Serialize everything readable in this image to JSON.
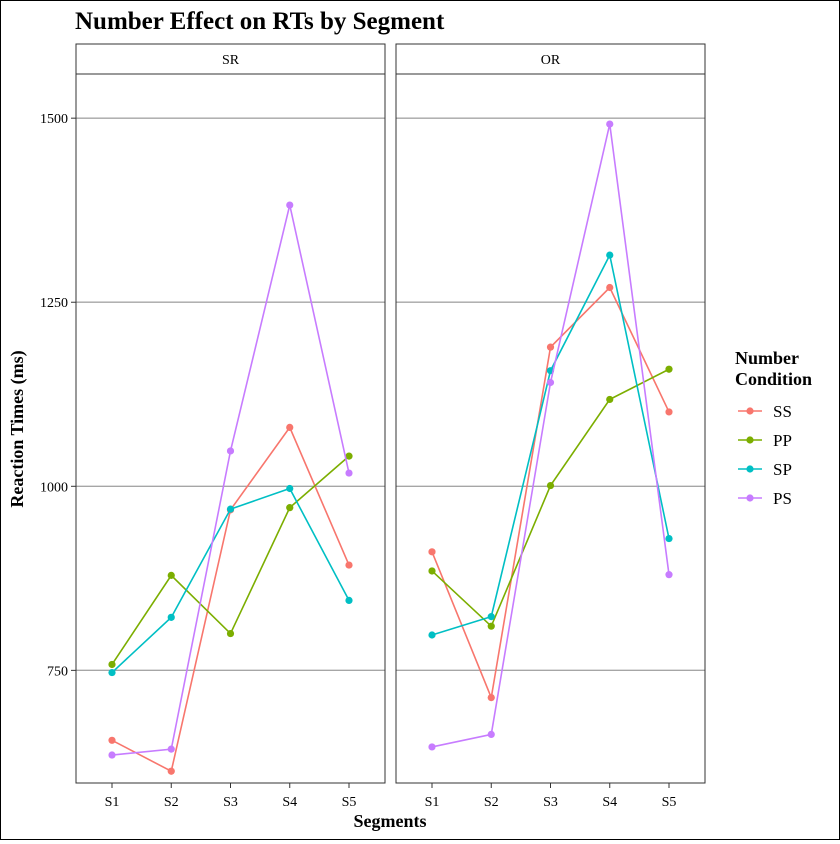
{
  "chart_data": {
    "type": "line",
    "title": "Number Effect on RTs by Segment",
    "xlabel": "Segments",
    "ylabel": "Reaction Times (ms)",
    "categories": [
      "S1",
      "S2",
      "S3",
      "S4",
      "S5"
    ],
    "ylim": [
      597,
      1560
    ],
    "yticks": [
      750,
      1000,
      1250,
      1500
    ],
    "grid": "horizontal-major",
    "legend": {
      "title_line1": "Number",
      "title_line2": "Condition",
      "position": "right"
    },
    "colors": {
      "SS": "#F8766D",
      "PP": "#7CAE00",
      "SP": "#00BFC4",
      "PS": "#C77CFF"
    },
    "panels": [
      {
        "label": "SR",
        "series": [
          {
            "name": "SS",
            "values": [
              655,
              613,
              968,
              1080,
              893
            ]
          },
          {
            "name": "PP",
            "values": [
              758,
              879,
              800,
              971,
              1041
            ]
          },
          {
            "name": "SP",
            "values": [
              747,
              822,
              969,
              997,
              845
            ]
          },
          {
            "name": "PS",
            "values": [
              635,
              643,
              1048,
              1382,
              1018
            ]
          }
        ]
      },
      {
        "label": "OR",
        "series": [
          {
            "name": "SS",
            "values": [
              911,
              713,
              1189,
              1270,
              1101
            ]
          },
          {
            "name": "PP",
            "values": [
              885,
              810,
              1001,
              1118,
              1159
            ]
          },
          {
            "name": "SP",
            "values": [
              798,
              823,
              1157,
              1314,
              929
            ]
          },
          {
            "name": "PS",
            "values": [
              646,
              663,
              1141,
              1492,
              880
            ]
          }
        ]
      }
    ]
  }
}
